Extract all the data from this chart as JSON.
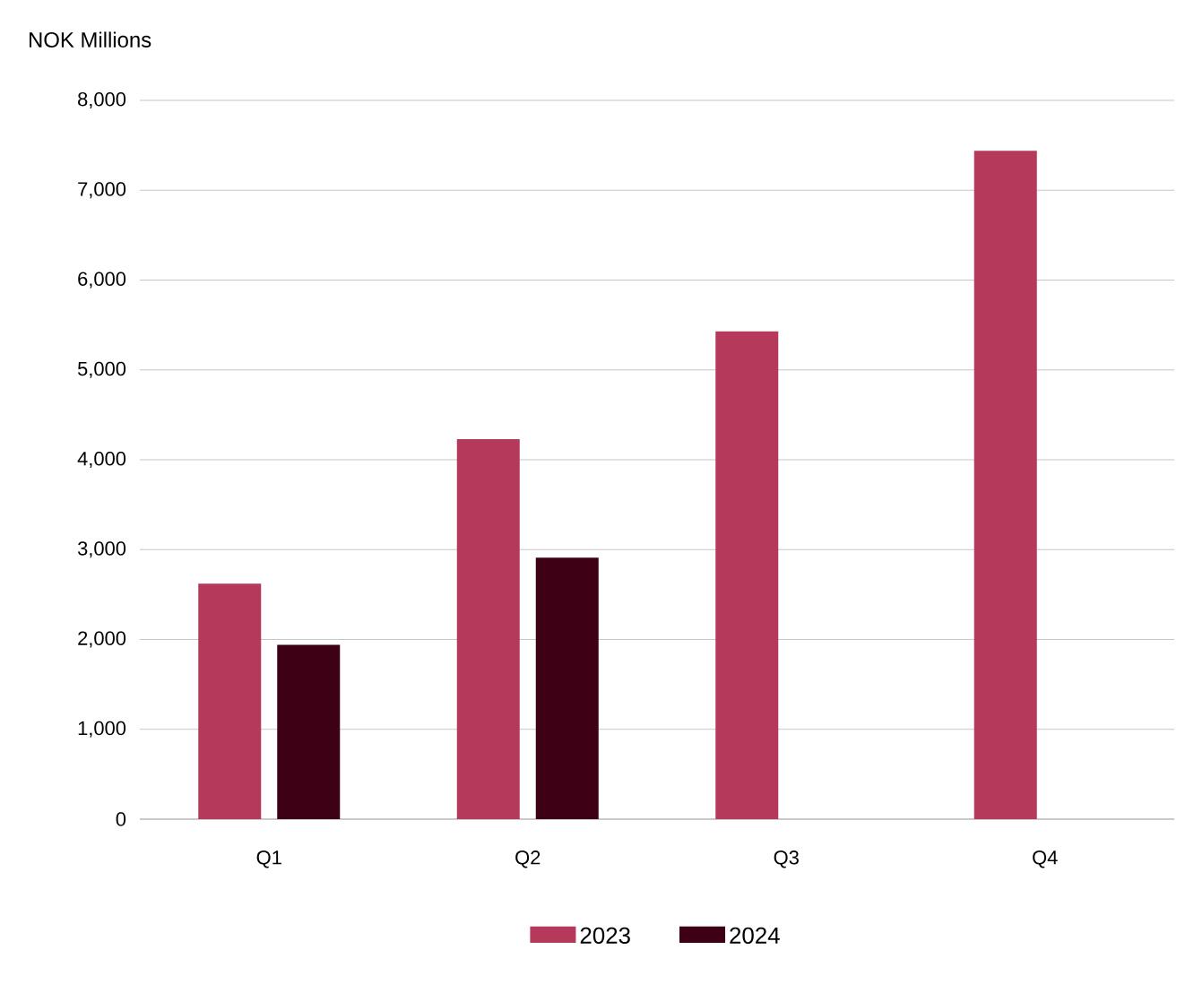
{
  "chart_data": {
    "type": "bar",
    "ylabel": "NOK Millions",
    "categories": [
      "Q1",
      "Q2",
      "Q3",
      "Q4"
    ],
    "series": [
      {
        "name": "2023",
        "color": "#b5395a",
        "values": [
          2620,
          4230,
          5430,
          7440
        ]
      },
      {
        "name": "2024",
        "color": "#3d0014",
        "values": [
          1940,
          2910,
          null,
          null
        ]
      }
    ],
    "ylim": [
      0,
      8000
    ],
    "yticks": [
      0,
      {
        "value": 1000,
        "label": "1,000"
      },
      {
        "value": 2000,
        "label": "2,000"
      },
      {
        "value": 3000,
        "label": "3,000"
      },
      {
        "value": 4000,
        "label": "4,000"
      },
      {
        "value": 5000,
        "label": "5,000"
      },
      {
        "value": 6000,
        "label": "6,000"
      },
      {
        "value": 7000,
        "label": "7,000"
      },
      {
        "value": 8000,
        "label": "8,000"
      }
    ],
    "grid": "y",
    "legend": "bottom"
  }
}
